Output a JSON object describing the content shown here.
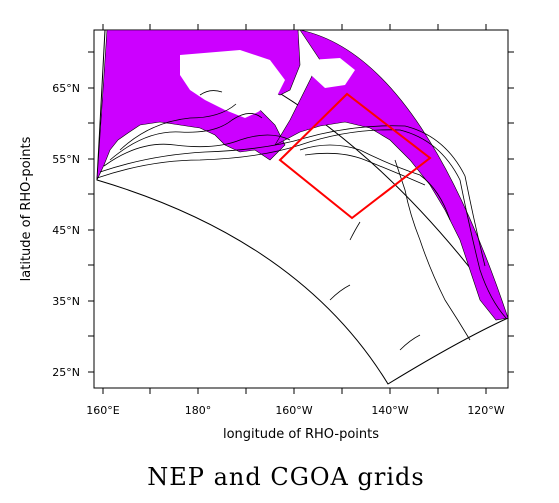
{
  "title": "NEP and CGOA grids",
  "axes": {
    "xlabel": "longitude of RHO-points",
    "ylabel": "latitude of RHO-points",
    "xticks": [
      "160°E",
      "180°",
      "160°W",
      "140°W",
      "120°W"
    ],
    "yticks": [
      "25°N",
      "35°N",
      "45°N",
      "55°N",
      "65°N"
    ]
  },
  "map": {
    "outer_grid": "NEP",
    "inner_grid": "CGOA",
    "land_color": "#cc00ff",
    "grid_outline_color": "#000000",
    "inner_grid_color": "#ff0000",
    "coastline_color": "#000000"
  }
}
